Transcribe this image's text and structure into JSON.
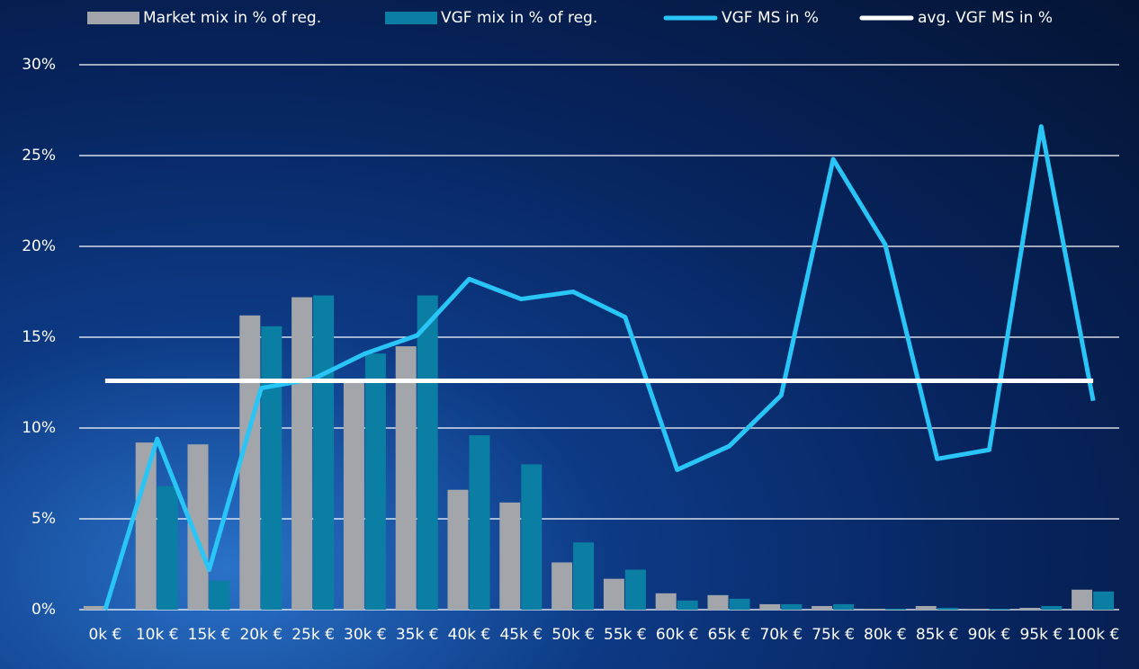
{
  "chart_data": {
    "type": "bar-line",
    "categories": [
      "0k €",
      "10k €",
      "15k €",
      "20k €",
      "25k €",
      "30k €",
      "35k €",
      "40k €",
      "45k €",
      "50k €",
      "55k €",
      "60k €",
      "65k €",
      "70k €",
      "75k €",
      "80k €",
      "85k €",
      "90k €",
      "95k €",
      "100k €"
    ],
    "series": [
      {
        "name": "Market mix in % of reg.",
        "kind": "bar",
        "color": "#a2a5aa",
        "values": [
          0.2,
          9.2,
          9.1,
          16.2,
          17.2,
          12.6,
          14.5,
          6.6,
          5.9,
          2.6,
          1.7,
          0.9,
          0.8,
          0.3,
          0.2,
          0.05,
          0.2,
          0.05,
          0.1,
          1.1
        ]
      },
      {
        "name": "VGF mix in % of reg.",
        "kind": "bar",
        "color": "#0a7fa3",
        "values": [
          0,
          6.8,
          1.6,
          15.6,
          17.3,
          14.1,
          17.3,
          9.6,
          8.0,
          3.7,
          2.2,
          0.5,
          0.6,
          0.3,
          0.3,
          0.05,
          0.1,
          0.05,
          0.2,
          1.0
        ]
      },
      {
        "name": "VGF MS in %",
        "kind": "line",
        "color": "#29c5f6",
        "values": [
          0,
          9.4,
          2.2,
          12.2,
          12.7,
          14.1,
          15.1,
          18.2,
          17.1,
          17.5,
          16.1,
          7.7,
          9.0,
          11.8,
          24.8,
          20.1,
          8.3,
          8.8,
          26.6,
          11.5
        ]
      },
      {
        "name": "avg. VGF MS in %",
        "kind": "line",
        "color": "#ffffff",
        "values": [
          12.6,
          12.6,
          12.6,
          12.6,
          12.6,
          12.6,
          12.6,
          12.6,
          12.6,
          12.6,
          12.6,
          12.6,
          12.6,
          12.6,
          12.6,
          12.6,
          12.6,
          12.6,
          12.6,
          12.6
        ]
      }
    ],
    "ylim": [
      0,
      30
    ],
    "yticks": [
      {
        "value": 0,
        "label": "0%"
      },
      {
        "value": 5,
        "label": "5%"
      },
      {
        "value": 10,
        "label": "10%"
      },
      {
        "value": 15,
        "label": "15%"
      },
      {
        "value": 20,
        "label": "20%"
      },
      {
        "value": 25,
        "label": "25%"
      },
      {
        "value": 30,
        "label": "30%"
      }
    ],
    "grid": true,
    "legend": "top"
  }
}
